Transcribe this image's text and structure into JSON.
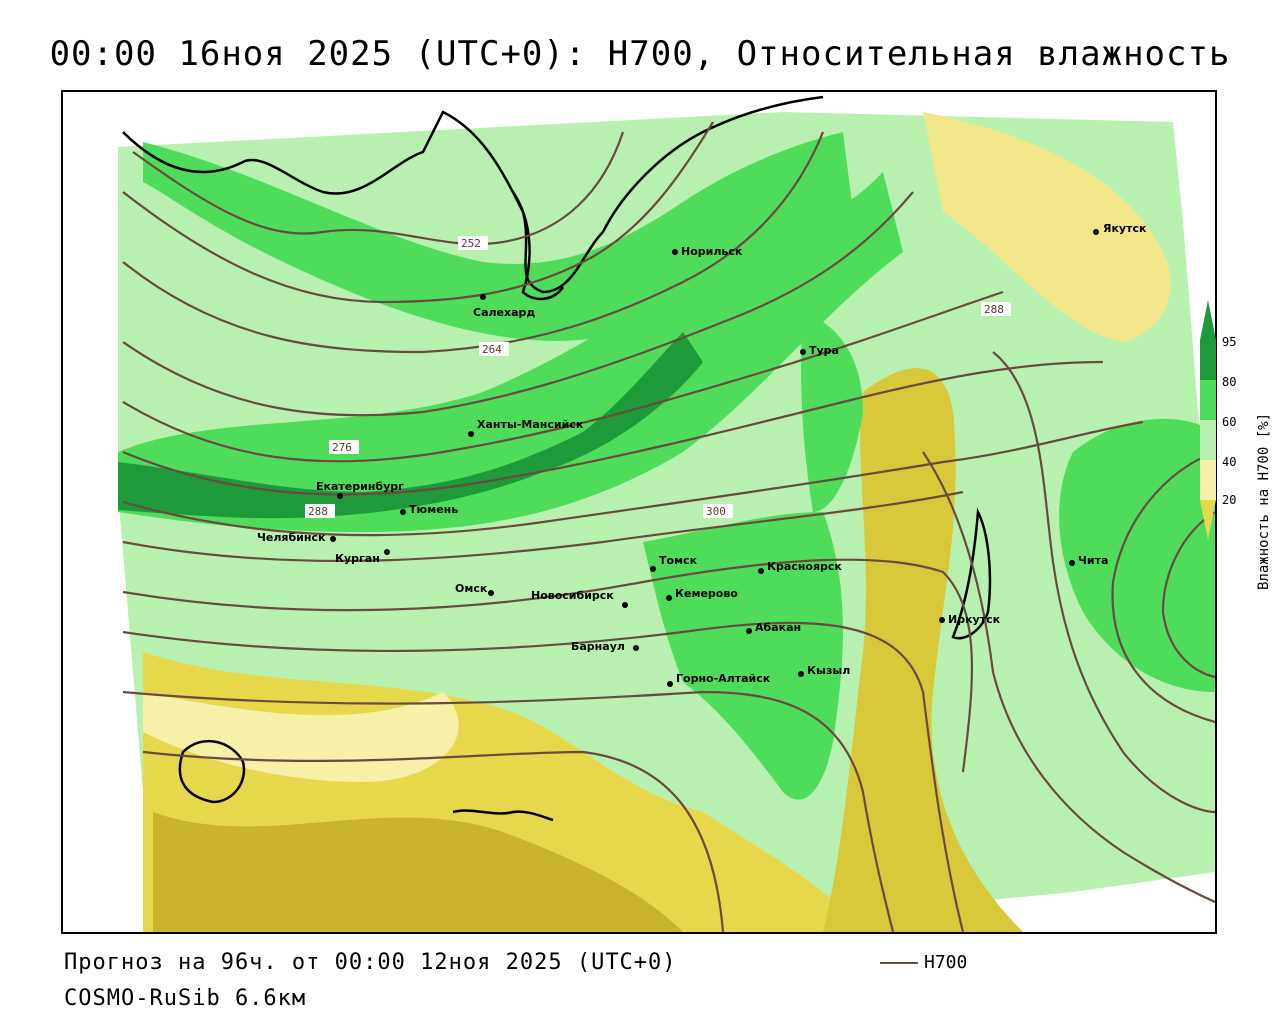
{
  "title": "00:00 16ноя 2025 (UTC+0): H700, Относительная влажность",
  "footer": {
    "forecast": "Прогноз на 96ч. от 00:00 12ноя 2025 (UTC+0)",
    "model": "COSMO-RuSib 6.6км",
    "contour_legend_label": "H700"
  },
  "legend": {
    "title": "Влажность на H700 [%]",
    "ticks": [
      "95",
      "80",
      "60",
      "40",
      "20"
    ],
    "colors": {
      "very_dry": "#c8b32a",
      "dry": "#e6d84a",
      "mid_dry": "#f7f0a8",
      "neutral": "#ffffff",
      "light_green": "#b8f0b0",
      "green": "#4fdc5a",
      "dark_green": "#1f9a3a"
    }
  },
  "contours": {
    "color": "#6a4a3e",
    "labels": [
      "252",
      "264",
      "276",
      "288",
      "288",
      "300"
    ]
  },
  "cities": [
    {
      "name": "Якутск"
    },
    {
      "name": "Норильск"
    },
    {
      "name": "Салехард"
    },
    {
      "name": "Тура"
    },
    {
      "name": "Ханты-Мансийск"
    },
    {
      "name": "Екатеринбург"
    },
    {
      "name": "Тюмень"
    },
    {
      "name": "Челябинск"
    },
    {
      "name": "Курган"
    },
    {
      "name": "Омск"
    },
    {
      "name": "Новосибирск"
    },
    {
      "name": "Томск"
    },
    {
      "name": "Кемерово"
    },
    {
      "name": "Красноярск"
    },
    {
      "name": "Абакан"
    },
    {
      "name": "Барнаул"
    },
    {
      "name": "Горно-Алтайск"
    },
    {
      "name": "Кызыл"
    },
    {
      "name": "Иркутск"
    },
    {
      "name": "Чита"
    }
  ]
}
